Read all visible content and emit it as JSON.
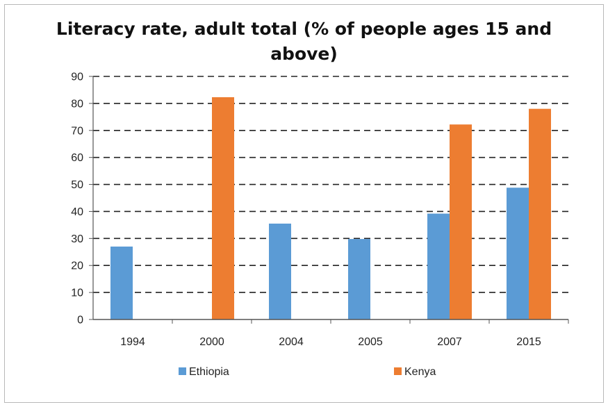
{
  "chart_data": {
    "type": "bar",
    "title_line1": "Literacy rate, adult total (% of people ages 15 and",
    "title_line2": "above)",
    "categories": [
      "1994",
      "2000",
      "2004",
      "2005",
      "2007",
      "2015"
    ],
    "series": [
      {
        "name": "Ethiopia",
        "color": "#5b9bd5",
        "values": [
          27.0,
          null,
          35.5,
          29.8,
          39.2,
          48.8
        ]
      },
      {
        "name": "Kenya",
        "color": "#ed7d31",
        "values": [
          null,
          82.3,
          null,
          null,
          72.2,
          78.0
        ]
      }
    ],
    "ylim": [
      0,
      90
    ],
    "yticks": [
      0,
      10,
      20,
      30,
      40,
      50,
      60,
      70,
      80,
      90
    ],
    "grid": "dashed horizontal",
    "legend_position": "bottom"
  }
}
